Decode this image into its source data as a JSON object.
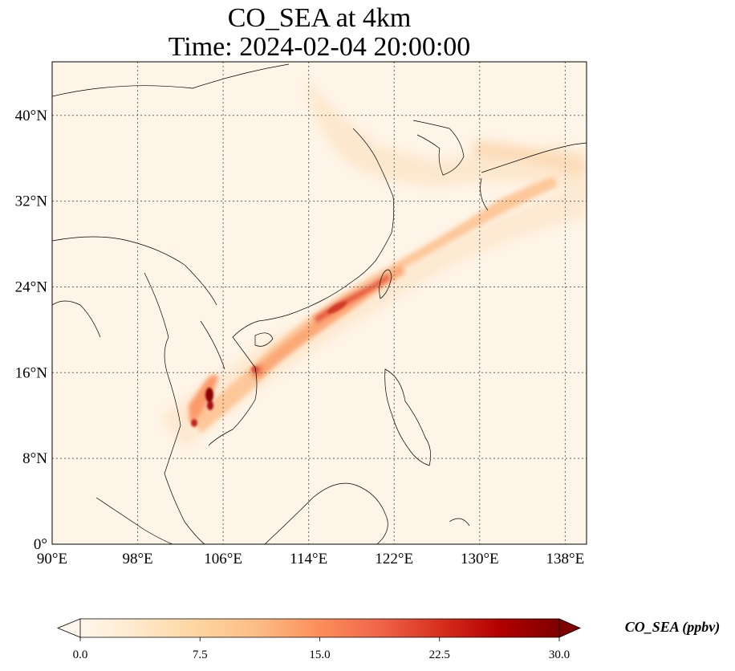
{
  "title": {
    "line1": "CO_SEA at 4km",
    "line2": "Time: 2024-02-04 20:00:00"
  },
  "map": {
    "projection": "PlateCarree",
    "lon_range": [
      90,
      140
    ],
    "lat_range": [
      0,
      45
    ],
    "gridlines": "dotted",
    "lon_ticks": [
      {
        "value": 90,
        "label": "90°E"
      },
      {
        "value": 98,
        "label": "98°E"
      },
      {
        "value": 106,
        "label": "106°E"
      },
      {
        "value": 114,
        "label": "114°E"
      },
      {
        "value": 122,
        "label": "122°E"
      },
      {
        "value": 130,
        "label": "130°E"
      },
      {
        "value": 138,
        "label": "138°E"
      }
    ],
    "lat_ticks": [
      {
        "value": 0,
        "label": "0°"
      },
      {
        "value": 8,
        "label": "8°N"
      },
      {
        "value": 16,
        "label": "16°N"
      },
      {
        "value": 24,
        "label": "24°N"
      },
      {
        "value": 32,
        "label": "32°N"
      },
      {
        "value": 40,
        "label": "40°N"
      }
    ]
  },
  "colorbar": {
    "label": "CO_SEA (ppbv)",
    "colormap": "OrRd",
    "range": [
      0,
      30
    ],
    "extend": "both",
    "ticks": [
      "0.0",
      "7.5",
      "15.0",
      "22.5",
      "30.0"
    ],
    "colors": [
      "#fff7ec",
      "#fee8c8",
      "#fdd49e",
      "#fdbb84",
      "#fc8d59",
      "#ef6548",
      "#d7301f",
      "#b30000",
      "#7f0000"
    ]
  },
  "plume": {
    "description_values": "CO concentration field, ppbv",
    "max_value": 30
  }
}
